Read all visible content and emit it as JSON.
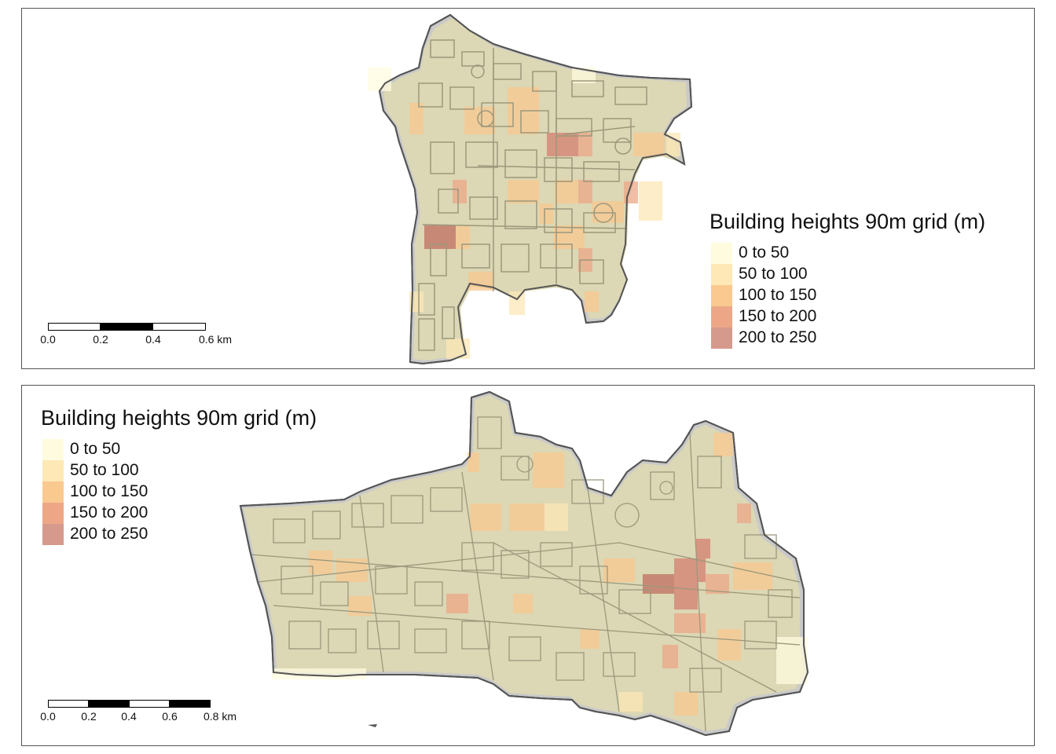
{
  "maps": [
    {
      "legend": {
        "title": "Building heights 90m grid (m)",
        "classes": [
          {
            "label": "0 to 50",
            "color": "#fffbdf"
          },
          {
            "label": "50 to 100",
            "color": "#fde8b6"
          },
          {
            "label": "100 to 150",
            "color": "#f9c990"
          },
          {
            "label": "150 to 200",
            "color": "#eda787"
          },
          {
            "label": "200 to 250",
            "color": "#d59a8c"
          }
        ]
      },
      "scalebar": {
        "ticks": [
          "0.0",
          "0.2",
          "0.4",
          "0.6 km"
        ]
      }
    },
    {
      "legend": {
        "title": "Building heights 90m grid (m)",
        "classes": [
          {
            "label": "0 to 50",
            "color": "#fffbdf"
          },
          {
            "label": "50 to 100",
            "color": "#fde8b6"
          },
          {
            "label": "100 to 150",
            "color": "#f9c990"
          },
          {
            "label": "150 to 200",
            "color": "#eda787"
          },
          {
            "label": "200 to 250",
            "color": "#d59a8c"
          }
        ]
      },
      "scalebar": {
        "ticks": [
          "0.0",
          "0.2",
          "0.4",
          "0.6",
          "0.8 km"
        ]
      }
    }
  ],
  "colors": {
    "area_fill": "#dcd7b4",
    "boundary": "#555555",
    "building_outline": "#9c987c",
    "grey_area": "#c9c9c9"
  }
}
